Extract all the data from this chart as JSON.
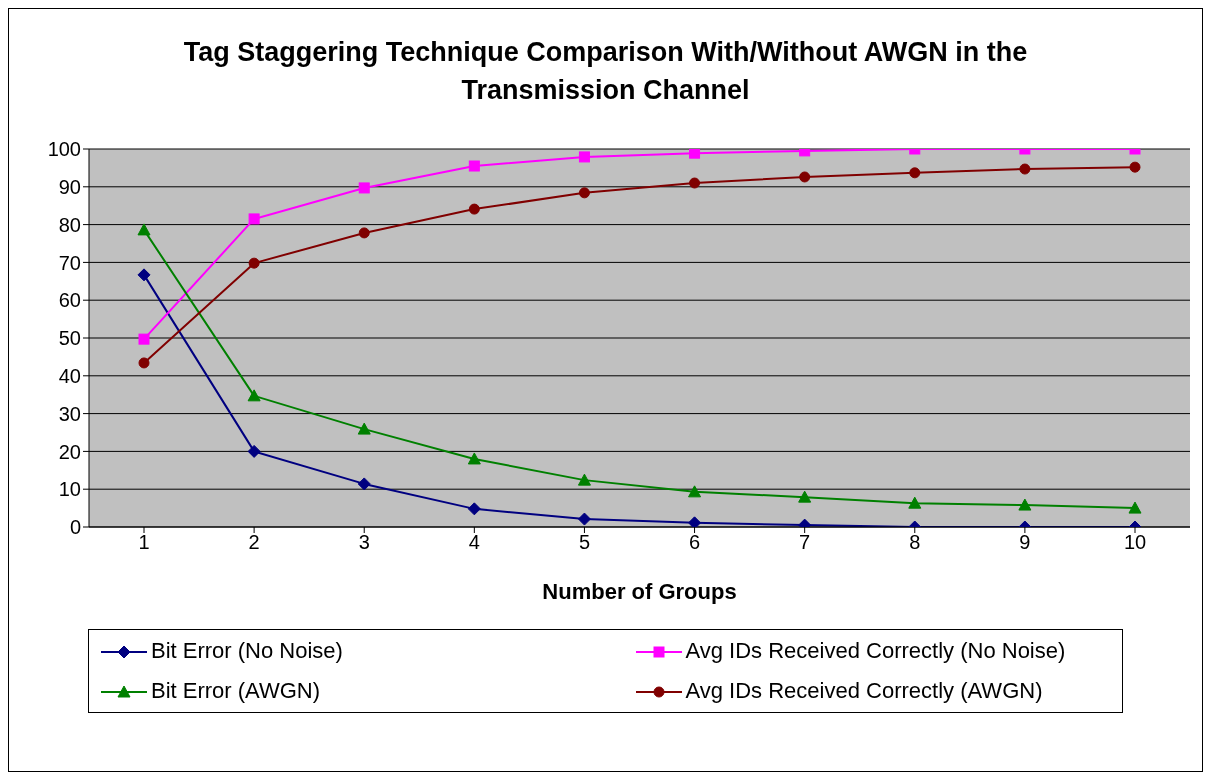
{
  "chart_data": {
    "type": "line",
    "title": "Tag Staggering Technique Comparison With/Without AWGN in the Transmission Channel",
    "xlabel": "Number of Groups",
    "categories": [
      "1",
      "2",
      "3",
      "4",
      "5",
      "6",
      "7",
      "8",
      "9",
      "10"
    ],
    "ylim": [
      0,
      100
    ],
    "yticks": [
      0,
      10,
      20,
      30,
      40,
      50,
      60,
      70,
      80,
      90,
      100
    ],
    "grid": "y",
    "legend": "bottom",
    "series": [
      {
        "name": "Bit Error (No Noise)",
        "color": "#000080",
        "marker": "diamond",
        "values": [
          66.7,
          20,
          11.4,
          4.8,
          2.1,
          1.1,
          0.5,
          0,
          0,
          0
        ]
      },
      {
        "name": "Avg IDs Received Correctly (No Noise)",
        "color": "#ff00ff",
        "marker": "square",
        "values": [
          49.7,
          81.5,
          89.7,
          95.5,
          97.9,
          98.9,
          99.5,
          100,
          100,
          100
        ]
      },
      {
        "name": "Bit Error (AWGN)",
        "color": "#008000",
        "marker": "triangle",
        "values": [
          78.6,
          34.7,
          25.9,
          18,
          12.4,
          9.3,
          7.9,
          6.3,
          5.8,
          5
        ]
      },
      {
        "name": "Avg IDs Received Correctly (AWGN)",
        "color": "#800000",
        "marker": "circle",
        "values": [
          43.4,
          69.8,
          77.8,
          84.1,
          88.4,
          91,
          92.6,
          93.7,
          94.7,
          95.2
        ]
      }
    ]
  }
}
